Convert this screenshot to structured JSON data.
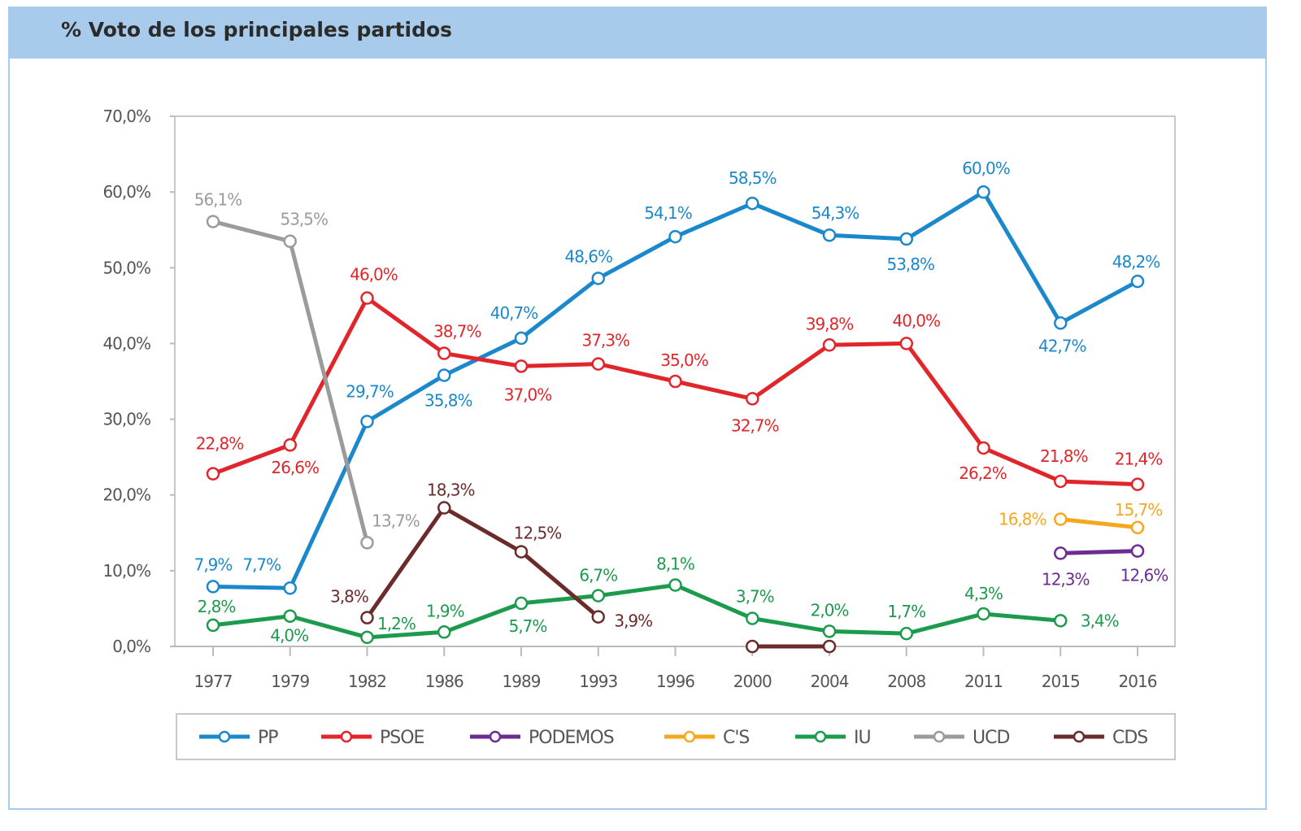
{
  "title": "% Voto de los principales partidos",
  "chart_data": {
    "type": "line",
    "title": "% Voto de los principales partidos",
    "xlabel": "",
    "ylabel": "",
    "categories": [
      "1977",
      "1979",
      "1982",
      "1986",
      "1989",
      "1993",
      "1996",
      "2000",
      "2004",
      "2008",
      "2011",
      "2015",
      "2016"
    ],
    "yticks": [
      "0,0%",
      "10,0%",
      "20,0%",
      "30,0%",
      "40,0%",
      "50,0%",
      "60,0%",
      "70,0%"
    ],
    "ylim": [
      0,
      70
    ],
    "grid": false,
    "legend_position": "bottom",
    "series": [
      {
        "name": "PP",
        "color": "#1b88cb",
        "values": [
          7.9,
          7.7,
          29.7,
          35.8,
          40.7,
          48.6,
          54.1,
          58.5,
          54.3,
          53.8,
          60.0,
          42.7,
          48.2
        ],
        "labels": [
          "7,9%",
          "7,7%",
          "29,7%",
          "35,8%",
          "40,7%",
          "48,6%",
          "54,1%",
          "58,5%",
          "54,3%",
          "53,8%",
          "60,0%",
          "42,7%",
          "48,2%"
        ]
      },
      {
        "name": "PSOE",
        "color": "#e1262b",
        "values": [
          22.8,
          26.6,
          46.0,
          38.7,
          37.0,
          37.3,
          35.0,
          32.7,
          39.8,
          40.0,
          26.2,
          21.8,
          21.4
        ],
        "labels": [
          "22,8%",
          "26,6%",
          "46,0%",
          "38,7%",
          "37,0%",
          "37,3%",
          "35,0%",
          "32,7%",
          "39,8%",
          "40,0%",
          "26,2%",
          "21,8%",
          "21,4%"
        ]
      },
      {
        "name": "PODEMOS",
        "color": "#6b2d92",
        "values": [
          null,
          null,
          null,
          null,
          null,
          null,
          null,
          null,
          null,
          null,
          null,
          12.3,
          12.6
        ],
        "labels": [
          null,
          null,
          null,
          null,
          null,
          null,
          null,
          null,
          null,
          null,
          null,
          "12,3%",
          "12,6%"
        ]
      },
      {
        "name": "C'S",
        "color": "#f5a81e",
        "values": [
          null,
          null,
          null,
          null,
          null,
          null,
          null,
          null,
          null,
          null,
          null,
          16.8,
          15.7
        ],
        "labels": [
          null,
          null,
          null,
          null,
          null,
          null,
          null,
          null,
          null,
          null,
          null,
          "16,8%",
          "15,7%"
        ]
      },
      {
        "name": "IU",
        "color": "#1b9b4b",
        "values": [
          2.8,
          4.0,
          1.2,
          1.9,
          5.7,
          6.7,
          8.1,
          3.7,
          2.0,
          1.7,
          4.3,
          3.4,
          null
        ],
        "labels": [
          "2,8%",
          "4,0%",
          "1,2%",
          "1,9%",
          "5,7%",
          "6,7%",
          "8,1%",
          "3,7%",
          "2,0%",
          "1,7%",
          "4,3%",
          "3,4%",
          null
        ]
      },
      {
        "name": "UCD",
        "color": "#9b9b9b",
        "values": [
          56.1,
          53.5,
          13.7,
          null,
          null,
          null,
          null,
          null,
          null,
          null,
          null,
          null,
          null
        ],
        "labels": [
          "56,1%",
          "53,5%",
          "13,7%",
          null,
          null,
          null,
          null,
          null,
          null,
          null,
          null,
          null,
          null
        ]
      },
      {
        "name": "CDS",
        "color": "#6c2b2b",
        "values": [
          null,
          null,
          3.8,
          18.3,
          12.5,
          3.9,
          null,
          0,
          0,
          null,
          null,
          null,
          null
        ],
        "labels": [
          null,
          null,
          "3,8%",
          "18,3%",
          "12,5%",
          "3,9%",
          null,
          null,
          null,
          null,
          null,
          null,
          null
        ]
      }
    ]
  }
}
